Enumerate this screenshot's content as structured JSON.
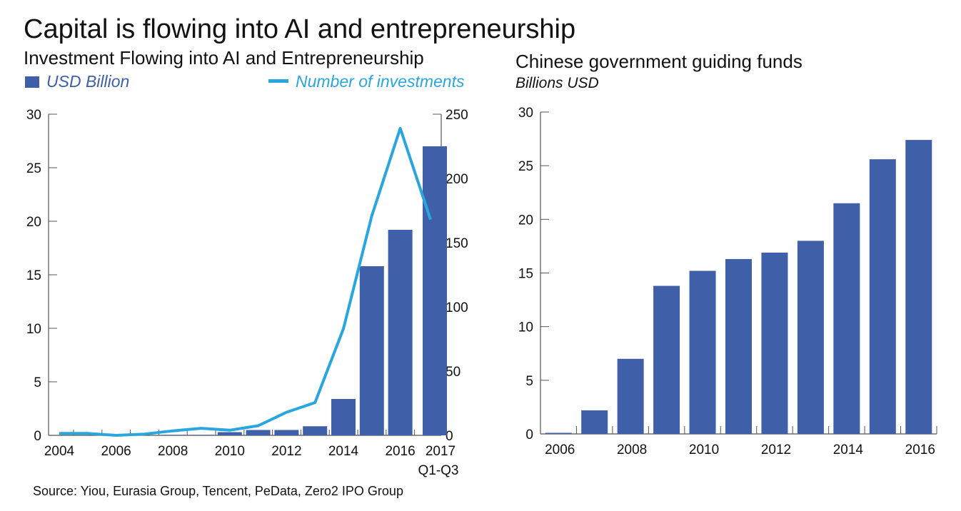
{
  "title": "Capital is flowing into AI and entrepreneurship",
  "source": "Source: Yiou, Eurasia Group, Tencent, PeData, Zero2 IPO Group",
  "colors": {
    "bar": "#3f5fa8",
    "line": "#29a6dd",
    "axis": "#555555"
  },
  "chart_data": [
    {
      "type": "bar+line",
      "title": "Investment Flowing into AI and Entrepreneurship",
      "categories": [
        "2004",
        "2005",
        "2006",
        "2007",
        "2008",
        "2009",
        "2010",
        "2011",
        "2012",
        "2013",
        "2014",
        "2015",
        "2016",
        "2017"
      ],
      "x_tick_labels": [
        "2004",
        "2006",
        "2008",
        "2010",
        "2012",
        "2014",
        "2016",
        "2017"
      ],
      "x_tick_sub": "Q1-Q3",
      "series": [
        {
          "name": "USD Billion",
          "type": "bar",
          "axis": "left",
          "values": [
            0,
            0,
            0,
            0,
            0.05,
            0.05,
            0.3,
            0.5,
            0.5,
            0.85,
            3.4,
            15.8,
            19.2,
            27.0
          ]
        },
        {
          "name": "Number of investments",
          "type": "line",
          "axis": "right",
          "values": [
            1.5,
            1.5,
            0,
            1,
            3.5,
            5.5,
            4,
            7.5,
            18,
            25.5,
            83,
            171,
            239,
            168
          ]
        }
      ],
      "ylim_left": [
        0,
        30
      ],
      "yticks_left": [
        0,
        5,
        10,
        15,
        20,
        25,
        30
      ],
      "ylim_right": [
        0,
        250
      ],
      "yticks_right": [
        0,
        50,
        100,
        150,
        200,
        250
      ],
      "legend": "top"
    },
    {
      "type": "bar",
      "title": "Chinese government guiding funds",
      "ylabel": "Billions USD",
      "categories": [
        "2006",
        "2007",
        "2008",
        "2009",
        "2010",
        "2011",
        "2012",
        "2013",
        "2014",
        "2015",
        "2016"
      ],
      "x_tick_labels": [
        "2006",
        "2008",
        "2010",
        "2012",
        "2014",
        "2016"
      ],
      "values": [
        0.1,
        2.2,
        7.0,
        13.8,
        15.2,
        16.3,
        16.9,
        18.0,
        21.5,
        25.6,
        27.4
      ],
      "ylim": [
        0,
        30
      ],
      "yticks": [
        0,
        5,
        10,
        15,
        20,
        25,
        30
      ]
    }
  ]
}
